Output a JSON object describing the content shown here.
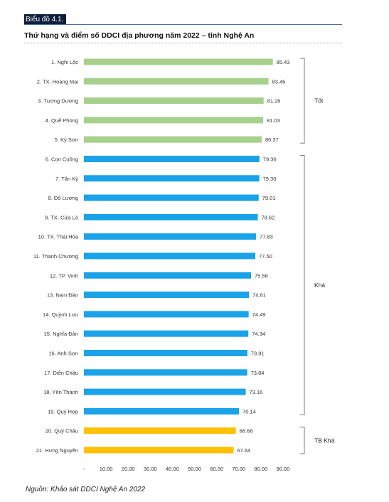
{
  "figure_label": "Biểu đồ 4.1.",
  "source_note": "Nguồn: Khảo sát DDCI Nghệ An 2022",
  "chart_data": {
    "type": "bar",
    "orientation": "horizontal",
    "title": "Thứ hạng và điểm số DDCI địa phương năm 2022 – tỉnh Nghệ An",
    "categories": [
      "1. Nghi Lộc",
      "2. TX. Hoàng Mai",
      "3. Tương Dương",
      "4. Quế Phong",
      "5. Kỳ Sơn",
      "6. Con Cuông",
      "7. Tân Kỳ",
      "8. Đô Lương",
      "9. TX. Cửa Lò",
      "10. TX. Thái Hòa",
      "11. Thanh Chương",
      "12. TP. Vinh",
      "13. Nam Đàn",
      "14. Quỳnh Lưu",
      "15. Nghĩa Đàn",
      "16. Anh Sơn",
      "17. Diễn Châu",
      "18. Yên Thành",
      "19. Quỳ Hợp",
      "20. Quỳ Châu",
      "21. Hưng Nguyên"
    ],
    "values": [
      85.43,
      83.46,
      81.26,
      81.03,
      80.37,
      79.36,
      79.3,
      79.01,
      78.62,
      77.83,
      77.5,
      75.56,
      74.61,
      74.49,
      74.34,
      73.91,
      73.84,
      73.16,
      70.14,
      68.68,
      67.64
    ],
    "value_labels": [
      "85.43",
      "83.46",
      "81.26",
      "81.03",
      "80.37",
      "79.36",
      "79.30",
      "79.01",
      "78.62",
      "77.83",
      "77.50",
      "75.56",
      "74.61",
      "74.49",
      "74.34",
      "73.91",
      "73.84",
      "73.16",
      "70.14",
      "68.68",
      "67.64"
    ],
    "groups": [
      {
        "name": "Tốt",
        "from": 0,
        "to": 4,
        "color": "#a8d08d"
      },
      {
        "name": "Khá",
        "from": 5,
        "to": 18,
        "color": "#1aa3e8"
      },
      {
        "name": "TB Khá",
        "from": 19,
        "to": 20,
        "color": "#ffc000"
      }
    ],
    "xlim": [
      0,
      90
    ],
    "xticks": [
      "-",
      "10.00",
      "20.00",
      "30.00",
      "40.00",
      "50.00",
      "60.00",
      "70.00",
      "80.00",
      "90.00"
    ],
    "grid": false,
    "legend": "none"
  }
}
